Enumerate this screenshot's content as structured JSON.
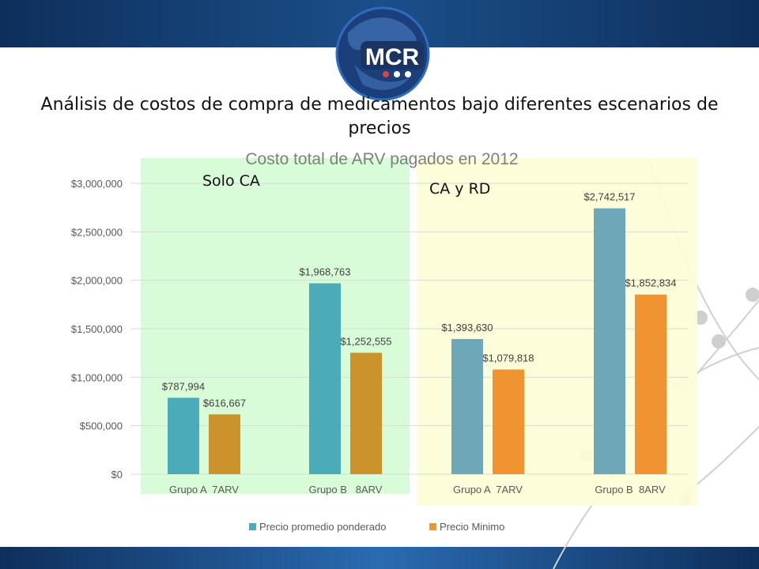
{
  "slide": {
    "title": "Análisis de costos de compra de medicamentos bajo diferentes escenarios de precios",
    "logo_text": "MCR"
  },
  "regions": [
    {
      "label": "Solo CA",
      "color": "#d8fcd8"
    },
    {
      "label": "CA y RD",
      "color": "#fdfdd6"
    }
  ],
  "colors": {
    "top_band": "#163f70",
    "ponderado_ca": "#4aacb8",
    "minimo_ca": "#cc922b",
    "ponderado_rd": "#6ea8b8",
    "minimo_rd": "#ef9430"
  },
  "chart_data": {
    "type": "bar",
    "title": "Costo total de ARV pagados en 2012",
    "categories": [
      "Grupo A  7ARV",
      "Grupo B   8ARV",
      "Grupo A  7ARV",
      "Grupo B  8ARV"
    ],
    "series": [
      {
        "name": "Precio promedio ponderado",
        "values": [
          787994,
          1968763,
          1393630,
          2742517
        ],
        "labels": [
          "$787,994",
          "$1,968,763",
          "$1,393,630",
          "$2,742,517"
        ]
      },
      {
        "name": "Precio Minimo",
        "values": [
          616667,
          1252555,
          1079818,
          1852834
        ],
        "labels": [
          "$616,667",
          "$1,252,555",
          "$1,079,818",
          "$1,852,834"
        ]
      }
    ],
    "ylim": [
      0,
      3000000
    ],
    "yticks": [
      "$0",
      "$500,000",
      "$1,000,000",
      "$1,500,000",
      "$2,000,000",
      "$2,500,000",
      "$3,000,000"
    ],
    "grid": true,
    "legend_position": "bottom"
  }
}
